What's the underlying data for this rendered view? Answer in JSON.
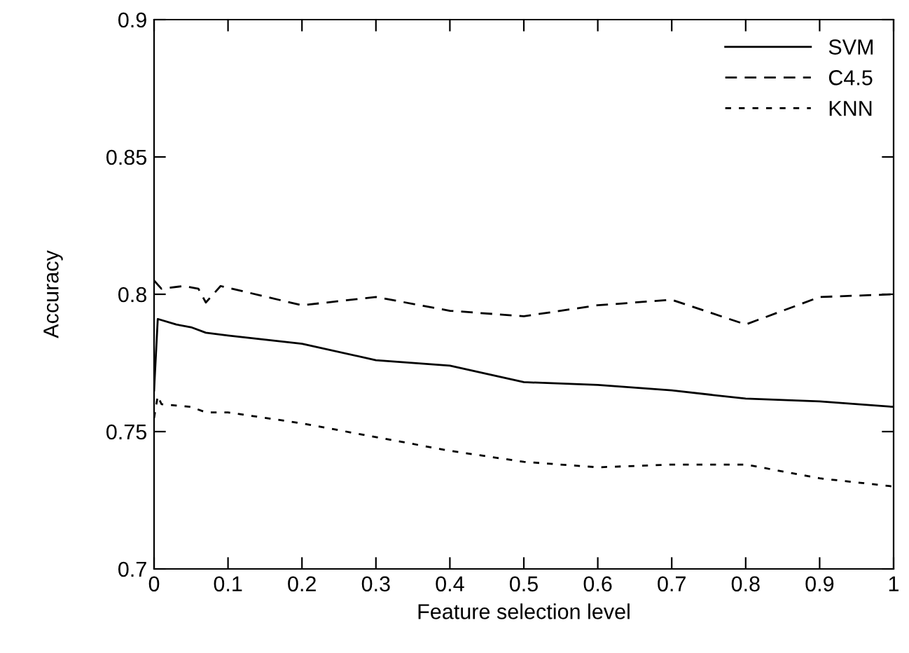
{
  "chart_data": {
    "type": "line",
    "xlabel": "Feature selection level",
    "ylabel": "Accuracy",
    "xlim": [
      0,
      1
    ],
    "ylim": [
      0.7,
      0.9
    ],
    "xticks": [
      0,
      0.1,
      0.2,
      0.3,
      0.4,
      0.5,
      0.6,
      0.7,
      0.8,
      0.9,
      1
    ],
    "yticks": [
      0.7,
      0.75,
      0.8,
      0.85,
      0.9
    ],
    "legend": "top right",
    "grid": false,
    "series": [
      {
        "name": "SVM",
        "color": "#000000",
        "line_style": "solid",
        "x": [
          0,
          0.005,
          0.03,
          0.05,
          0.07,
          0.1,
          0.2,
          0.3,
          0.4,
          0.5,
          0.6,
          0.7,
          0.8,
          0.9,
          1.0
        ],
        "values": [
          0.765,
          0.791,
          0.789,
          0.788,
          0.786,
          0.785,
          0.782,
          0.776,
          0.774,
          0.768,
          0.767,
          0.765,
          0.762,
          0.761,
          0.759
        ]
      },
      {
        "name": "C4.5",
        "color": "#000000",
        "line_style": "dashed",
        "x": [
          0,
          0.01,
          0.04,
          0.06,
          0.07,
          0.09,
          0.2,
          0.3,
          0.4,
          0.5,
          0.6,
          0.7,
          0.8,
          0.9,
          1.0
        ],
        "values": [
          0.805,
          0.802,
          0.803,
          0.802,
          0.797,
          0.803,
          0.796,
          0.799,
          0.794,
          0.792,
          0.796,
          0.798,
          0.789,
          0.799,
          0.8
        ]
      },
      {
        "name": "KNN",
        "color": "#000000",
        "line_style": "dotted",
        "x": [
          0,
          0.005,
          0.01,
          0.05,
          0.07,
          0.1,
          0.2,
          0.3,
          0.4,
          0.5,
          0.6,
          0.7,
          0.8,
          0.9,
          1.0
        ],
        "values": [
          0.755,
          0.763,
          0.76,
          0.759,
          0.757,
          0.757,
          0.753,
          0.748,
          0.743,
          0.739,
          0.737,
          0.738,
          0.738,
          0.733,
          0.73
        ]
      }
    ]
  }
}
